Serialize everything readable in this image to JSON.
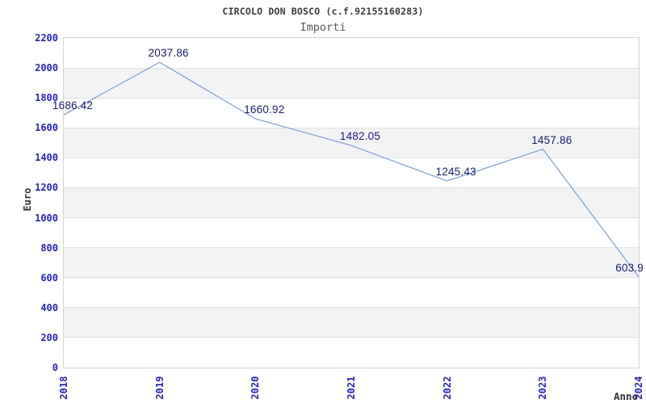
{
  "window": {
    "title": "CIRCOLO DON BOSCO (c.f.92155160283)"
  },
  "colors": {
    "line": "#74a3dc",
    "tick_label": "#2323cc",
    "data_label": "#18187e",
    "band": "#f3f3f3",
    "gridline": "#e2e2e2",
    "plot_border": "#d5d5d5",
    "title": "#3c3c3c",
    "subtitle": "#575757",
    "axis_title": "#333333",
    "background": "#ffffff"
  },
  "chart_data": {
    "type": "line",
    "title": "CIRCOLO DON BOSCO (c.f.92155160283)",
    "subtitle": "Importi",
    "xlabel": "Anno",
    "ylabel": "Euro",
    "categories": [
      "2018",
      "2019",
      "2020",
      "2021",
      "2022",
      "2023",
      "2024"
    ],
    "series": [
      {
        "name": "Importi",
        "values": [
          1686.42,
          2037.86,
          1660.92,
          1482.05,
          1245.43,
          1457.86,
          603.9
        ]
      }
    ],
    "data_labels": [
      "1686.42",
      "2037.86",
      "1660.92",
      "1482.05",
      "1245.43",
      "1457.86",
      "603.9"
    ],
    "ylim": [
      0,
      2200
    ],
    "ytick_step": 200,
    "ytick_labels": [
      "0",
      "200",
      "400",
      "600",
      "800",
      "1000",
      "1200",
      "1400",
      "1600",
      "1800",
      "2000",
      "2200"
    ],
    "legend": "none",
    "grid": "horizontal gridlines with alternating gray bands"
  }
}
